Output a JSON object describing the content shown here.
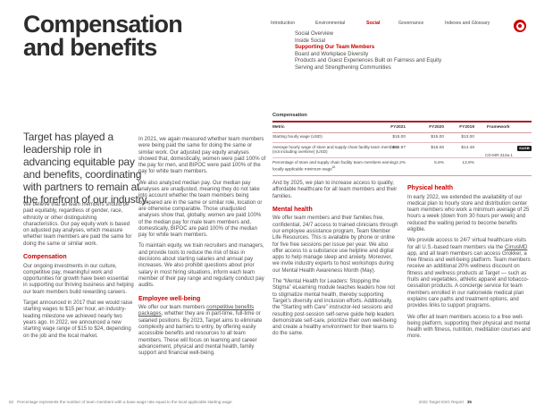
{
  "page_title": {
    "line1": "Compensation",
    "line2": "and benefits"
  },
  "nav": {
    "items": [
      "Introduction",
      "Environmental",
      "Social",
      "Governance",
      "Indexes and Glossary"
    ],
    "active": "Social"
  },
  "subnav": {
    "items": [
      "Social Overview",
      "Inside Social",
      "Supporting Our Team Members",
      "Board and Workplace Diversity",
      "Products and Guest Experiences Built on Fairness and Equity",
      "Serving and Strengthening Communities"
    ],
    "active": "Supporting Our Team Members"
  },
  "logo": {
    "name": "Target bullseye",
    "color": "#cc0000"
  },
  "intro": "Target has played a leadership role in advancing equitable pay and benefits, coordinating with partners to remain at the forefront of our industry.",
  "col1": {
    "p1": "We believe that all team members should be paid equitably, regardless of gender, race, ethnicity or other distinguishing characteristics. Our pay equity work is based on adjusted pay analyses, which measure whether team members are paid the same for doing the same or similar work.",
    "heading": "Compensation",
    "p2": "Our ongoing investments in our culture, competitive pay, meaningful work and opportunities for growth have been essential in supporting our thriving business and helping our team members build rewarding careers.",
    "p3": "Target announced in 2017 that we would raise starting wages to $15 per hour, an industry-leading milestone we achieved nearly two years ago. In 2022, we announced a new starting wage range of $15 to $24, depending on the job and the local market."
  },
  "col2": {
    "p1": "In 2021, we again measured whether team members were being paid the same for doing the same or similar work. Our adjusted pay equity analyses showed that, domestically, women were paid 100% of the pay for men, and BIPOC were paid 100% of the pay for white team members.",
    "p2": "We also analyzed median pay. Our median pay analyses are unadjusted, meaning they do not take into account whether the team members being compared are in the same or similar role, location or are otherwise comparable. Those unadjusted analyses show that, globally, women are paid 100% of the median pay for male team members and, domestically, BIPOC are paid 100% of the median pay for white team members.",
    "p3": "To maintain equity, we train recruiters and managers, and provide tools to reduce the risk of bias in decisions about starting salaries and annual pay increases. We also prohibit questions about prior salary in most hiring situations, inform each team member of their pay range and regularly conduct pay audits.",
    "heading": "Employee well-being",
    "p4_pre": "We offer our team members ",
    "p4_link": "competitive benefits packages",
    "p4_post": ", whether they are in part-time, full-time or salaried positions. By 2023, Target aims to eliminate complexity and barriers to entry, by offering easily accessible benefits and resources to all team members. These will focus on learning and career advancement, physical and mental health, family support and financial well-being."
  },
  "table": {
    "title": "Compensation",
    "headers": {
      "metric": "Metric",
      "fy2021": "FY2021",
      "fy2020": "FY2020",
      "fy2019": "FY2019",
      "framework": "Framework"
    },
    "rows": [
      {
        "metric": "Starting hourly wage (USD)",
        "fy2021": "$15.00",
        "fy2020": "$15.00",
        "fy2019": "$13.00"
      },
      {
        "metric": "Average hourly wage of store and supply chain facility team members (not including overtime) (USD)",
        "fy2021": "$16.97",
        "fy2020": "$16.06",
        "fy2019": "$14.48",
        "framework_badge": "SASB",
        "framework_code": "CD-MR-310a.1"
      },
      {
        "metric": "Percentage of store and supply chain facility team members earning locally applicable minimum wage",
        "footnote_ref": "62",
        "fy2021": "2.2%",
        "fy2020": "5.6%",
        "fy2019": "13.9%"
      }
    ]
  },
  "col3": {
    "p1": "And by 2025, we plan to increase access to quality, affordable healthcare for all team members and their families.",
    "heading": "Mental health",
    "p2": "We offer team members and their families free, confidential, 24/7 access to trained clinicians through our employee assistance program, Team Member Life Resources. This is available by phone or online for five free sessions per issue per year. We also offer access to a substance use helpline and digital apps to help manage sleep and anxiety. Moreover, we invite industry experts to host workshops during our Mental Health Awareness Month (May).",
    "p3": "The “Mental Health for Leaders: Stopping the Stigma” eLearning module teaches leaders how not to stigmatize mental health, thereby supporting Target’s diversity and inclusion efforts. Additionally, the “Starting with Care” instructor-led sessions and resulting post-session self-serve guide help leaders demonstrate self-care, prioritize their own well-being and create a healthy environment for their teams to do the same."
  },
  "col4": {
    "heading": "Physical health",
    "p1": "In early 2022, we extended the availability of our medical plan to hourly store and distribution center team members who work a minimum average of 25 hours a week (down from 30 hours per week) and reduced the waiting period to become benefits eligible.",
    "p2_pre": "We provide access to 24/7 virtual healthcare visits for all U.S.-based team members via the ",
    "p2_link": "CirrusMD",
    "p2_post": " app, and all team members can access Grokker, a free fitness and well-being platform. Team members receive an additional 20% wellness discount on fitness and wellness products at Target — such as fruits and vegetables, athletic apparel and tobacco-cessation products. A concierge service for team members enrolled in our nationwide medical plan explains care paths and treatment options, and provides links to support programs.",
    "p3": "We offer all team members access to a free well-being platform, supporting their physical and mental health with fitness, nutrition, meditation courses and more."
  },
  "footer": {
    "footnote_ref": "62",
    "footnote": "Percentage represents the number of team members with a base wage rate equal to the local applicable starting wage",
    "report": "2022 Target ESG Report",
    "page": "35"
  },
  "colors": {
    "accent": "#cc0000",
    "table_rule": "#b01e28",
    "badge_bg": "#1a1a1a"
  }
}
